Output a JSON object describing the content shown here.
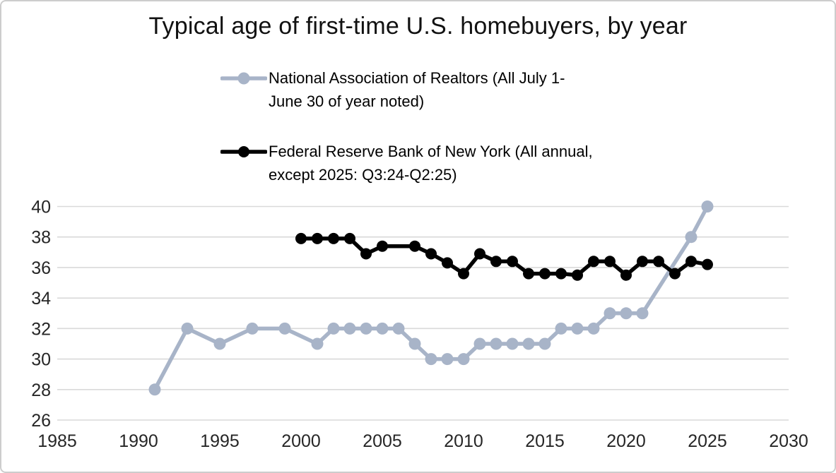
{
  "title": "Typical age of first-time U.S. homebuyers, by year",
  "legend": {
    "items": [
      {
        "id": "nar",
        "lines": [
          "National Association of Realtors (All July 1-",
          "June 30 of year noted)"
        ]
      },
      {
        "id": "frbny",
        "lines": [
          "Federal Reserve Bank of New York (All annual,",
          "except 2025: Q3:24-Q2:25)"
        ]
      }
    ]
  },
  "colors": {
    "nar_series": "#a8b4c8",
    "frbny_series": "#000000",
    "gridline": "#d9d9d9",
    "tick_label": "#262626",
    "title_text": "#111111"
  },
  "chart_data": {
    "type": "line",
    "title": "Typical age of first-time U.S. homebuyers, by year",
    "xlabel": "",
    "ylabel": "",
    "x_axis": {
      "min": 1985,
      "max": 2030,
      "ticks": [
        1985,
        1990,
        1995,
        2000,
        2005,
        2010,
        2015,
        2020,
        2025,
        2030
      ]
    },
    "y_axis": {
      "min": 26,
      "max": 40,
      "ticks": [
        26,
        28,
        30,
        32,
        34,
        36,
        38,
        40
      ]
    },
    "grid": "horizontal",
    "legend_position": "top",
    "series": [
      {
        "name": "National Association of Realtors (All July 1-June 30 of year noted)",
        "color": "#a8b4c8",
        "marker_radius": 8.5,
        "line_width": 5.5,
        "points": [
          [
            1991,
            28
          ],
          [
            1993,
            32
          ],
          [
            1995,
            31
          ],
          [
            1997,
            32
          ],
          [
            1999,
            32
          ],
          [
            2001,
            31
          ],
          [
            2002,
            32
          ],
          [
            2003,
            32
          ],
          [
            2004,
            32
          ],
          [
            2005,
            32
          ],
          [
            2006,
            32
          ],
          [
            2007,
            31
          ],
          [
            2008,
            30
          ],
          [
            2009,
            30
          ],
          [
            2010,
            30
          ],
          [
            2011,
            31
          ],
          [
            2012,
            31
          ],
          [
            2013,
            31
          ],
          [
            2014,
            31
          ],
          [
            2015,
            31
          ],
          [
            2016,
            32
          ],
          [
            2017,
            32
          ],
          [
            2018,
            32
          ],
          [
            2019,
            33
          ],
          [
            2020,
            33
          ],
          [
            2021,
            33
          ],
          [
            2024,
            38
          ],
          [
            2025,
            40
          ]
        ]
      },
      {
        "name": "Federal Reserve Bank of New York (All annual, except 2025: Q3:24-Q2:25)",
        "color": "#000000",
        "marker_radius": 8,
        "line_width": 5.5,
        "points": [
          [
            2000,
            37.9
          ],
          [
            2001,
            37.9
          ],
          [
            2002,
            37.9
          ],
          [
            2003,
            37.9
          ],
          [
            2004,
            36.9
          ],
          [
            2005,
            37.4
          ],
          [
            2007,
            37.4
          ],
          [
            2008,
            36.9
          ],
          [
            2009,
            36.3
          ],
          [
            2010,
            35.6
          ],
          [
            2011,
            36.9
          ],
          [
            2012,
            36.4
          ],
          [
            2013,
            36.4
          ],
          [
            2014,
            35.6
          ],
          [
            2015,
            35.6
          ],
          [
            2016,
            35.6
          ],
          [
            2017,
            35.5
          ],
          [
            2018,
            36.4
          ],
          [
            2019,
            36.4
          ],
          [
            2020,
            35.5
          ],
          [
            2021,
            36.4
          ],
          [
            2022,
            36.4
          ],
          [
            2023,
            35.6
          ],
          [
            2024,
            36.4
          ],
          [
            2025,
            36.2
          ]
        ]
      }
    ]
  }
}
